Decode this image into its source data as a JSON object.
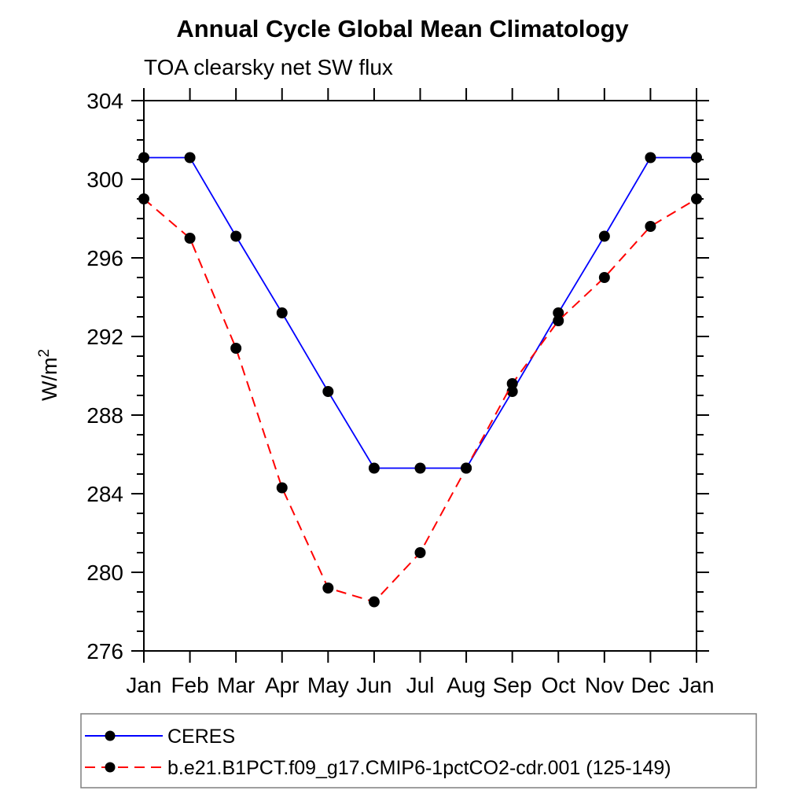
{
  "page": {
    "background": "#ffffff"
  },
  "chart_data": {
    "type": "line",
    "title": "Annual Cycle Global Mean Climatology",
    "subtitle": "TOA clearsky net SW flux",
    "ylabel": "W/m2",
    "x_categories": [
      "Jan",
      "Feb",
      "Mar",
      "Apr",
      "May",
      "Jun",
      "Jul",
      "Aug",
      "Sep",
      "Oct",
      "Nov",
      "Dec",
      "Jan"
    ],
    "ylim": [
      276,
      304
    ],
    "y_major_step": 4,
    "y_minor_step": 1,
    "y_major_ticks": [
      276,
      280,
      284,
      288,
      292,
      296,
      300,
      304
    ],
    "grid": false,
    "axis_color": "#000000",
    "marker_color": "#000000",
    "legend_position": "bottom-left boxed",
    "series": [
      {
        "name": "CERES",
        "color": "#0000ff",
        "line_style": "solid",
        "marker": "filled-circle",
        "values": [
          301.1,
          301.1,
          297.1,
          293.2,
          289.2,
          285.3,
          285.3,
          285.3,
          289.2,
          293.2,
          297.1,
          301.1,
          301.1
        ]
      },
      {
        "name": "b.e21.B1PCT.f09_g17.CMIP6-1pctCO2-cdr.001 (125-149)",
        "color": "#ff0000",
        "line_style": "dashed",
        "marker": "filled-circle",
        "values": [
          299.0,
          297.0,
          291.4,
          284.3,
          279.2,
          278.5,
          281.0,
          285.3,
          289.6,
          292.8,
          295.0,
          297.6,
          299.0
        ]
      }
    ]
  }
}
